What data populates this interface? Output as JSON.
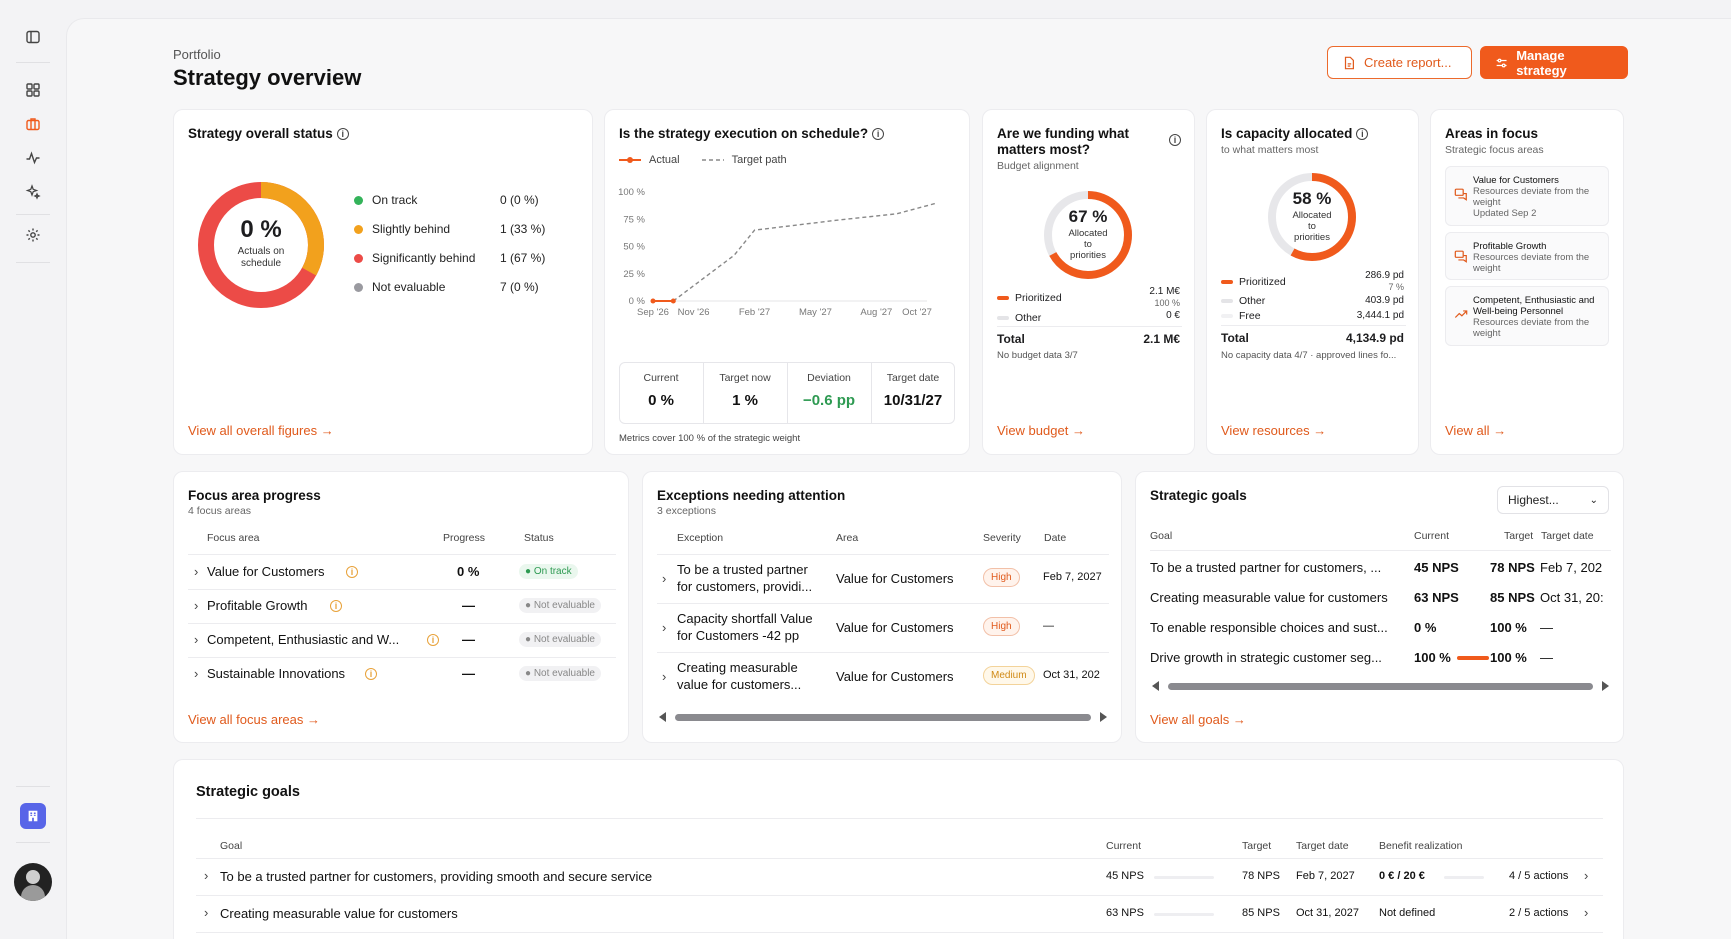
{
  "header": {
    "breadcrumb": "Portfolio",
    "title": "Strategy overview",
    "create_report_label": "Create report...",
    "manage_strategy_label": "Manage strategy"
  },
  "colors": {
    "accent": "#f05a1c",
    "on_track": "#34b35a",
    "slightly_behind": "#f2a11d",
    "significantly_behind": "#ec4b47",
    "not_evaluable": "#9a9aa0"
  },
  "overall_status": {
    "title": "Strategy overall status",
    "donut_value": "0 %",
    "donut_caption_1": "Actuals on",
    "donut_caption_2": "schedule",
    "legend": [
      {
        "label": "On track",
        "value": "0 (0 %)"
      },
      {
        "label": "Slightly behind",
        "value": "1 (33 %)"
      },
      {
        "label": "Significantly behind",
        "value": "1 (67 %)"
      },
      {
        "label": "Not evaluable",
        "value": "7 (0 %)"
      }
    ],
    "link": "View all overall figures"
  },
  "schedule": {
    "title": "Is the strategy execution on schedule?",
    "legend_actual": "Actual",
    "legend_target": "Target path",
    "y_ticks": [
      "100 %",
      "75 %",
      "50 %",
      "25 %",
      "0 %"
    ],
    "x_ticks": [
      "Sep '26",
      "Nov '26",
      "Feb '27",
      "May '27",
      "Aug '27",
      "Oct '27"
    ],
    "metrics": [
      {
        "label": "Current",
        "value": "0 %"
      },
      {
        "label": "Target now",
        "value": "1 %"
      },
      {
        "label": "Deviation",
        "value": "−0.6 pp"
      },
      {
        "label": "Target date",
        "value": "10/31/27"
      }
    ],
    "footnote": "Metrics cover 100 % of the strategic weight"
  },
  "chart_data": {
    "type": "line",
    "x": [
      "Sep '26",
      "Nov '26",
      "Feb '27",
      "May '27",
      "Aug '27",
      "Oct '27"
    ],
    "series": [
      {
        "name": "Actual",
        "points": [
          [
            "Sep '26",
            0
          ],
          [
            "Oct '26",
            0
          ]
        ]
      },
      {
        "name": "Target path",
        "points": [
          [
            "Oct '26",
            0
          ],
          [
            "Jan '27",
            42
          ],
          [
            "Feb '27",
            65
          ],
          [
            "Jun '27",
            74
          ],
          [
            "Sep '27",
            80
          ],
          [
            "Nov '27",
            90
          ]
        ]
      }
    ],
    "ylim": [
      0,
      100
    ],
    "legend": "top-left"
  },
  "funding": {
    "title_1": "Are we funding what",
    "title_2": "matters most?",
    "subtitle": "Budget alignment",
    "donut_value": "67 %",
    "donut_caption": [
      "Allocated",
      "to",
      "priorities"
    ],
    "rows": [
      {
        "label": "Prioritized",
        "value": "2.1 M€",
        "sub": "100 %"
      },
      {
        "label": "Other",
        "value": "0 €"
      }
    ],
    "total_label": "Total",
    "total_value": "2.1 M€",
    "note": "No budget data 3/7",
    "link": "View budget"
  },
  "capacity": {
    "title": "Is capacity allocated",
    "subtitle": "to what matters most",
    "donut_value": "58 %",
    "donut_caption": [
      "Allocated",
      "to",
      "priorities"
    ],
    "rows": [
      {
        "label": "Prioritized",
        "value": "286.9 pd",
        "sub": "7 %"
      },
      {
        "label": "Other",
        "value": "403.9 pd"
      },
      {
        "label": "Free",
        "value": "3,444.1 pd"
      }
    ],
    "total_label": "Total",
    "total_value": "4,134.9 pd",
    "note": "No capacity data 4/7 · approved lines fo...",
    "link": "View resources"
  },
  "areas": {
    "title": "Areas in focus",
    "subtitle": "Strategic focus areas",
    "items": [
      {
        "name": "Value for Customers",
        "desc": [
          "Resources deviate from the",
          "weight",
          "Updated Sep 2"
        ]
      },
      {
        "name": "Profitable Growth",
        "desc": [
          "Resources deviate from the",
          "weight"
        ]
      },
      {
        "name_lines": [
          "Competent, Enthusiastic and",
          "Well-being Personnel"
        ],
        "desc": [
          "Resources deviate from the",
          "weight"
        ]
      }
    ],
    "link": "View all"
  },
  "focus_progress": {
    "title": "Focus area progress",
    "subtitle": "4 focus areas",
    "headers": {
      "area": "Focus area",
      "progress": "Progress",
      "status": "Status"
    },
    "rows": [
      {
        "name": "Value for Customers",
        "progress": "0 %",
        "status": "On track"
      },
      {
        "name": "Profitable Growth",
        "progress": "—",
        "status": "Not evaluable"
      },
      {
        "name": "Competent, Enthusiastic and W...",
        "progress": "—",
        "status": "Not evaluable"
      },
      {
        "name": "Sustainable Innovations",
        "progress": "—",
        "status": "Not evaluable"
      }
    ],
    "link": "View all focus areas"
  },
  "exceptions": {
    "title": "Exceptions needing attention",
    "subtitle": "3 exceptions",
    "headers": {
      "exception": "Exception",
      "area": "Area",
      "severity": "Severity",
      "date": "Date"
    },
    "rows": [
      {
        "line1": "To be a trusted partner",
        "line2": "for customers, providi...",
        "area": "Value for Customers",
        "severity": "High",
        "date": "Feb 7, 2027"
      },
      {
        "line1": "Capacity shortfall Value",
        "line2": "for Customers -42 pp",
        "area": "Value for Customers",
        "severity": "High",
        "date": "—"
      },
      {
        "line1": "Creating measurable",
        "line2": "value for customers...",
        "area": "Value for Customers",
        "severity": "Medium",
        "date": "Oct 31, 202"
      }
    ]
  },
  "goals_card": {
    "title": "Strategic goals",
    "dropdown": "Highest...",
    "headers": {
      "goal": "Goal",
      "current": "Current",
      "target": "Target",
      "date": "Target date"
    },
    "rows": [
      {
        "goal": "To be a trusted partner for customers, ...",
        "current": "45 NPS",
        "target": "78 NPS",
        "date": "Feb 7, 202"
      },
      {
        "goal": "Creating measurable value for customers",
        "current": "63 NPS",
        "target": "85 NPS",
        "date": "Oct 31, 20:"
      },
      {
        "goal": "To enable responsible choices and sust...",
        "current": "0 %",
        "target": "100 %",
        "date": "—"
      },
      {
        "goal": "Drive growth in strategic customer seg...",
        "current": "100 %",
        "target": "100 %",
        "date": "—"
      }
    ],
    "link": "View all goals"
  },
  "goals_table": {
    "title": "Strategic goals",
    "headers": {
      "goal": "Goal",
      "current": "Current",
      "target": "Target",
      "date": "Target date",
      "benefit": "Benefit realization"
    },
    "rows": [
      {
        "goal": "To be a trusted partner for customers, providing smooth and secure service",
        "current": "45 NPS",
        "target": "78 NPS",
        "date": "Feb 7, 2027",
        "benefit": "0 € / 20 €",
        "actions": "4 / 5 actions"
      },
      {
        "goal": "Creating measurable value for customers",
        "current": "63 NPS",
        "target": "85 NPS",
        "date": "Oct 31, 2027",
        "benefit": "Not defined",
        "actions": "2 / 5 actions"
      }
    ]
  }
}
